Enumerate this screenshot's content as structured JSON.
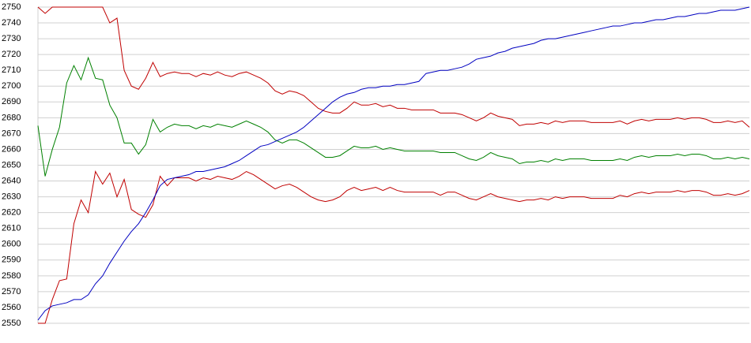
{
  "chart_data": {
    "type": "line",
    "ylim": [
      2550,
      2750
    ],
    "yticks": [
      2550,
      2560,
      2570,
      2580,
      2590,
      2600,
      2610,
      2620,
      2630,
      2640,
      2650,
      2660,
      2670,
      2680,
      2690,
      2700,
      2710,
      2720,
      2730,
      2740,
      2750
    ],
    "grid": true,
    "series": [
      {
        "color": "#c00000",
        "values": [
          2750,
          2746,
          2750,
          2750,
          2750,
          2750,
          2750,
          2750,
          2750,
          2750,
          2740,
          2743,
          2710,
          2700,
          2698,
          2705,
          2715,
          2706,
          2708,
          2709,
          2708,
          2708,
          2706,
          2708,
          2707,
          2709,
          2707,
          2706,
          2708,
          2709,
          2707,
          2705,
          2702,
          2697,
          2695,
          2697,
          2696,
          2694,
          2690,
          2686,
          2684,
          2683,
          2683,
          2686,
          2690,
          2688,
          2688,
          2689,
          2687,
          2688,
          2686,
          2686,
          2685,
          2685,
          2685,
          2685,
          2683,
          2683,
          2683,
          2682,
          2680,
          2678,
          2680,
          2683,
          2681,
          2680,
          2679,
          2675,
          2676,
          2676,
          2677,
          2676,
          2678,
          2677,
          2678,
          2678,
          2678,
          2677,
          2677,
          2677,
          2677,
          2678,
          2676,
          2678,
          2679,
          2678,
          2679,
          2679,
          2679,
          2680,
          2679,
          2680,
          2680,
          2679,
          2677,
          2677,
          2678,
          2677,
          2678,
          2674
        ]
      },
      {
        "color": "#008000",
        "values": [
          2675,
          2643,
          2660,
          2674,
          2702,
          2713,
          2704,
          2718,
          2705,
          2704,
          2688,
          2680,
          2664,
          2664,
          2657,
          2663,
          2679,
          2671,
          2674,
          2676,
          2675,
          2675,
          2673,
          2675,
          2674,
          2676,
          2675,
          2674,
          2676,
          2678,
          2676,
          2674,
          2671,
          2666,
          2664,
          2666,
          2666,
          2664,
          2661,
          2658,
          2655,
          2655,
          2656,
          2659,
          2662,
          2661,
          2661,
          2662,
          2660,
          2661,
          2660,
          2659,
          2659,
          2659,
          2659,
          2659,
          2658,
          2658,
          2658,
          2656,
          2654,
          2653,
          2655,
          2658,
          2656,
          2655,
          2654,
          2651,
          2652,
          2652,
          2653,
          2652,
          2654,
          2653,
          2654,
          2654,
          2654,
          2653,
          2653,
          2653,
          2653,
          2654,
          2653,
          2655,
          2656,
          2655,
          2656,
          2656,
          2656,
          2657,
          2656,
          2657,
          2657,
          2656,
          2654,
          2654,
          2655,
          2654,
          2655,
          2654
        ]
      },
      {
        "color": "#c00000",
        "values": [
          2550,
          2550,
          2565,
          2577,
          2578,
          2613,
          2628,
          2620,
          2646,
          2638,
          2645,
          2630,
          2641,
          2622,
          2619,
          2617,
          2625,
          2643,
          2637,
          2642,
          2642,
          2642,
          2640,
          2642,
          2641,
          2643,
          2642,
          2641,
          2643,
          2646,
          2644,
          2641,
          2638,
          2635,
          2637,
          2638,
          2636,
          2633,
          2630,
          2628,
          2627,
          2628,
          2630,
          2634,
          2636,
          2634,
          2635,
          2636,
          2634,
          2636,
          2634,
          2633,
          2633,
          2633,
          2633,
          2633,
          2631,
          2633,
          2633,
          2631,
          2629,
          2628,
          2630,
          2632,
          2630,
          2629,
          2628,
          2627,
          2628,
          2628,
          2629,
          2628,
          2630,
          2629,
          2630,
          2630,
          2630,
          2629,
          2629,
          2629,
          2629,
          2631,
          2630,
          2632,
          2633,
          2632,
          2633,
          2633,
          2633,
          2634,
          2633,
          2634,
          2634,
          2633,
          2631,
          2631,
          2632,
          2631,
          2632,
          2634
        ]
      },
      {
        "color": "#0000c0",
        "values": [
          2552,
          2558,
          2561,
          2562,
          2563,
          2565,
          2565,
          2568,
          2575,
          2580,
          2588,
          2595,
          2602,
          2608,
          2613,
          2620,
          2628,
          2637,
          2641,
          2642,
          2643,
          2644,
          2646,
          2646,
          2647,
          2648,
          2649,
          2651,
          2653,
          2656,
          2659,
          2662,
          2663,
          2665,
          2667,
          2669,
          2671,
          2674,
          2678,
          2682,
          2686,
          2690,
          2693,
          2695,
          2696,
          2698,
          2699,
          2699,
          2700,
          2700,
          2701,
          2701,
          2702,
          2703,
          2708,
          2709,
          2710,
          2710,
          2711,
          2712,
          2714,
          2717,
          2718,
          2719,
          2721,
          2722,
          2724,
          2725,
          2726,
          2727,
          2729,
          2730,
          2730,
          2731,
          2732,
          2733,
          2734,
          2735,
          2736,
          2737,
          2738,
          2738,
          2739,
          2740,
          2740,
          2741,
          2742,
          2742,
          2743,
          2744,
          2744,
          2745,
          2746,
          2746,
          2747,
          2748,
          2748,
          2748,
          2749,
          2750
        ]
      }
    ]
  }
}
